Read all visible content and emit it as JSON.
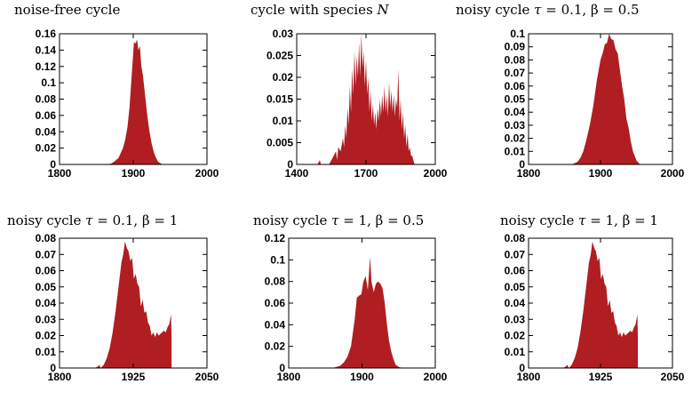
{
  "colors": {
    "fill": "#b01e22",
    "axis": "#000000"
  },
  "chart_data": [
    {
      "type": "area",
      "title": {
        "pre": "noise-free cycle",
        "var": "",
        "post": ""
      },
      "xlim": [
        1800,
        2000
      ],
      "ylim": [
        0,
        0.16
      ],
      "xticks": [
        1800,
        1900,
        2000
      ],
      "yticks": [
        0,
        0.02,
        0.04,
        0.06,
        0.08,
        0.1,
        0.12,
        0.14,
        0.16
      ],
      "xtick_labels": [
        "1800",
        "1900",
        "2000"
      ],
      "ytick_labels": [
        "0",
        "0.02",
        "0.04",
        "0.06",
        "0.08",
        "0.1",
        "0.12",
        "0.14",
        "0.16"
      ],
      "x": [
        1860,
        1870,
        1875,
        1880,
        1883,
        1886,
        1889,
        1892,
        1895,
        1898,
        1901,
        1903,
        1905,
        1907,
        1909,
        1911,
        1913,
        1916,
        1919,
        1922,
        1925,
        1928,
        1931,
        1934,
        1940,
        1960
      ],
      "y": [
        0,
        0.001,
        0.004,
        0.008,
        0.014,
        0.02,
        0.03,
        0.045,
        0.07,
        0.11,
        0.15,
        0.148,
        0.153,
        0.14,
        0.145,
        0.12,
        0.11,
        0.085,
        0.06,
        0.04,
        0.025,
        0.015,
        0.008,
        0.003,
        0,
        0
      ]
    },
    {
      "type": "area",
      "title": {
        "pre": "cycle with species ",
        "var": "N",
        "post": ""
      },
      "xlim": [
        1400,
        2000
      ],
      "ylim": [
        0,
        0.03
      ],
      "xticks": [
        1400,
        1700,
        2000
      ],
      "yticks": [
        0,
        0.005,
        0.01,
        0.015,
        0.02,
        0.025,
        0.03
      ],
      "xtick_labels": [
        "1400",
        "1700",
        "2000"
      ],
      "ytick_labels": [
        "0",
        "0.005",
        "0.01",
        "0.015",
        "0.02",
        "0.025",
        "0.03"
      ],
      "x": [
        1480,
        1490,
        1500,
        1505,
        1510,
        1520,
        1540,
        1550,
        1560,
        1570,
        1575,
        1580,
        1590,
        1600,
        1605,
        1610,
        1615,
        1620,
        1625,
        1630,
        1635,
        1640,
        1645,
        1650,
        1655,
        1660,
        1665,
        1670,
        1675,
        1680,
        1685,
        1690,
        1695,
        1700,
        1705,
        1710,
        1715,
        1720,
        1725,
        1730,
        1735,
        1740,
        1745,
        1750,
        1755,
        1760,
        1765,
        1770,
        1775,
        1780,
        1785,
        1790,
        1795,
        1800,
        1805,
        1810,
        1815,
        1820,
        1825,
        1830,
        1835,
        1840,
        1845,
        1850,
        1855,
        1860,
        1865,
        1870,
        1875,
        1880,
        1885,
        1890,
        1895,
        1900,
        1905,
        1910,
        1920
      ],
      "y": [
        0,
        0,
        0.001,
        0,
        0,
        0,
        0,
        0.001,
        0.002,
        0.003,
        0.001,
        0.004,
        0.003,
        0.006,
        0.004,
        0.009,
        0.006,
        0.013,
        0.009,
        0.018,
        0.012,
        0.022,
        0.016,
        0.026,
        0.018,
        0.025,
        0.02,
        0.028,
        0.02,
        0.03,
        0.022,
        0.026,
        0.018,
        0.024,
        0.016,
        0.02,
        0.012,
        0.017,
        0.01,
        0.014,
        0.009,
        0.012,
        0.008,
        0.013,
        0.01,
        0.015,
        0.011,
        0.016,
        0.012,
        0.018,
        0.012,
        0.016,
        0.011,
        0.019,
        0.013,
        0.017,
        0.012,
        0.016,
        0.011,
        0.015,
        0.013,
        0.022,
        0.01,
        0.015,
        0.008,
        0.012,
        0.006,
        0.009,
        0.004,
        0.007,
        0.003,
        0.004,
        0.002,
        0.002,
        0.001,
        0,
        0
      ]
    },
    {
      "type": "area",
      "title": {
        "pre": "noisy cycle ",
        "var": "τ",
        "post": " = 0.1,  β = 0.5"
      },
      "xlim": [
        1800,
        2000
      ],
      "ylim": [
        0,
        0.1
      ],
      "xticks": [
        1800,
        1900,
        2000
      ],
      "yticks": [
        0,
        0.01,
        0.02,
        0.03,
        0.04,
        0.05,
        0.06,
        0.07,
        0.08,
        0.09,
        0.1
      ],
      "xtick_labels": [
        "1800",
        "1900",
        "2000"
      ],
      "ytick_labels": [
        "0",
        "0.01",
        "0.02",
        "0.03",
        "0.04",
        "0.05",
        "0.06",
        "0.07",
        "0.08",
        "0.09",
        "0.1"
      ],
      "x": [
        1860,
        1868,
        1872,
        1876,
        1880,
        1885,
        1890,
        1895,
        1900,
        1903,
        1906,
        1909,
        1912,
        1915,
        1918,
        1921,
        1924,
        1927,
        1930,
        1933,
        1936,
        1939,
        1942,
        1945,
        1950,
        1955,
        1960
      ],
      "y": [
        0,
        0.002,
        0.005,
        0.01,
        0.018,
        0.03,
        0.045,
        0.065,
        0.08,
        0.085,
        0.092,
        0.093,
        0.1,
        0.096,
        0.095,
        0.088,
        0.085,
        0.072,
        0.06,
        0.05,
        0.035,
        0.028,
        0.018,
        0.01,
        0.003,
        0,
        0
      ]
    },
    {
      "type": "area",
      "title": {
        "pre": "noisy cycle ",
        "var": "τ",
        "post": " = 0.1,  β = 1"
      },
      "xlim": [
        1800,
        2050
      ],
      "ylim": [
        0,
        0.08
      ],
      "xticks": [
        1800,
        1925,
        2050
      ],
      "yticks": [
        0,
        0.01,
        0.02,
        0.03,
        0.04,
        0.05,
        0.06,
        0.07,
        0.08
      ],
      "xtick_labels": [
        "1800",
        "1925",
        "2050"
      ],
      "ytick_labels": [
        "0",
        "0.01",
        "0.02",
        "0.03",
        "0.04",
        "0.05",
        "0.06",
        "0.07",
        "0.08"
      ],
      "x": [
        1855,
        1860,
        1865,
        1867,
        1870,
        1875,
        1880,
        1885,
        1890,
        1895,
        1900,
        1905,
        1908,
        1911,
        1914,
        1917,
        1920,
        1923,
        1926,
        1929,
        1932,
        1935,
        1938,
        1941,
        1944,
        1947,
        1950,
        1953,
        1956,
        1959,
        1962,
        1965,
        1968,
        1971,
        1974,
        1977,
        1980,
        1983,
        1986,
        1989,
        1990
      ],
      "y": [
        0,
        0,
        0.001,
        0.002,
        0,
        0.002,
        0.006,
        0.012,
        0.022,
        0.035,
        0.05,
        0.065,
        0.07,
        0.078,
        0.074,
        0.072,
        0.066,
        0.068,
        0.055,
        0.058,
        0.052,
        0.05,
        0.038,
        0.042,
        0.034,
        0.035,
        0.028,
        0.026,
        0.02,
        0.022,
        0.019,
        0.022,
        0.02,
        0.021,
        0.022,
        0.023,
        0.022,
        0.025,
        0.027,
        0.033,
        0.018
      ]
    },
    {
      "type": "area",
      "title": {
        "pre": "noisy cycle ",
        "var": "τ",
        "post": " = 1,  β = 0.5"
      },
      "xlim": [
        1800,
        2000
      ],
      "ylim": [
        0,
        0.12
      ],
      "xticks": [
        1800,
        1900,
        2000
      ],
      "yticks": [
        0,
        0.02,
        0.04,
        0.06,
        0.08,
        0.1,
        0.12
      ],
      "xtick_labels": [
        "1800",
        "1900",
        "2000"
      ],
      "ytick_labels": [
        "0",
        "0.02",
        "0.04",
        "0.06",
        "0.08",
        "0.1",
        "0.12"
      ],
      "x": [
        1860,
        1865,
        1870,
        1875,
        1880,
        1885,
        1890,
        1893,
        1896,
        1899,
        1902,
        1905,
        1908,
        1911,
        1913,
        1916,
        1919,
        1922,
        1925,
        1928,
        1931,
        1934,
        1937,
        1940,
        1943,
        1946,
        1950,
        1955,
        1960
      ],
      "y": [
        0,
        0.001,
        0.002,
        0.005,
        0.01,
        0.02,
        0.045,
        0.065,
        0.067,
        0.068,
        0.08,
        0.085,
        0.072,
        0.103,
        0.08,
        0.07,
        0.078,
        0.08,
        0.078,
        0.074,
        0.06,
        0.04,
        0.025,
        0.015,
        0.008,
        0.003,
        0.001,
        0,
        0
      ]
    },
    {
      "type": "area",
      "title": {
        "pre": "noisy cycle ",
        "var": "τ",
        "post": " = 1,  β = 1"
      },
      "xlim": [
        1800,
        2050
      ],
      "ylim": [
        0,
        0.08
      ],
      "xticks": [
        1800,
        1925,
        2050
      ],
      "yticks": [
        0,
        0.01,
        0.02,
        0.03,
        0.04,
        0.05,
        0.06,
        0.07,
        0.08
      ],
      "xtick_labels": [
        "1800",
        "1925",
        "2050"
      ],
      "ytick_labels": [
        "0",
        "0.01",
        "0.02",
        "0.03",
        "0.04",
        "0.05",
        "0.06",
        "0.07",
        "0.08"
      ],
      "x": [
        1855,
        1860,
        1865,
        1867,
        1870,
        1875,
        1880,
        1885,
        1890,
        1895,
        1900,
        1905,
        1908,
        1911,
        1914,
        1917,
        1920,
        1923,
        1926,
        1929,
        1932,
        1935,
        1938,
        1941,
        1944,
        1947,
        1950,
        1953,
        1956,
        1959,
        1962,
        1965,
        1968,
        1971,
        1974,
        1977,
        1980,
        1983,
        1986,
        1989,
        1990
      ],
      "y": [
        0,
        0,
        0.001,
        0.002,
        0,
        0.002,
        0.006,
        0.012,
        0.022,
        0.035,
        0.05,
        0.065,
        0.07,
        0.078,
        0.074,
        0.072,
        0.066,
        0.068,
        0.055,
        0.058,
        0.052,
        0.05,
        0.038,
        0.042,
        0.034,
        0.035,
        0.028,
        0.026,
        0.02,
        0.022,
        0.019,
        0.022,
        0.02,
        0.021,
        0.022,
        0.023,
        0.022,
        0.025,
        0.027,
        0.033,
        0.018
      ]
    }
  ]
}
